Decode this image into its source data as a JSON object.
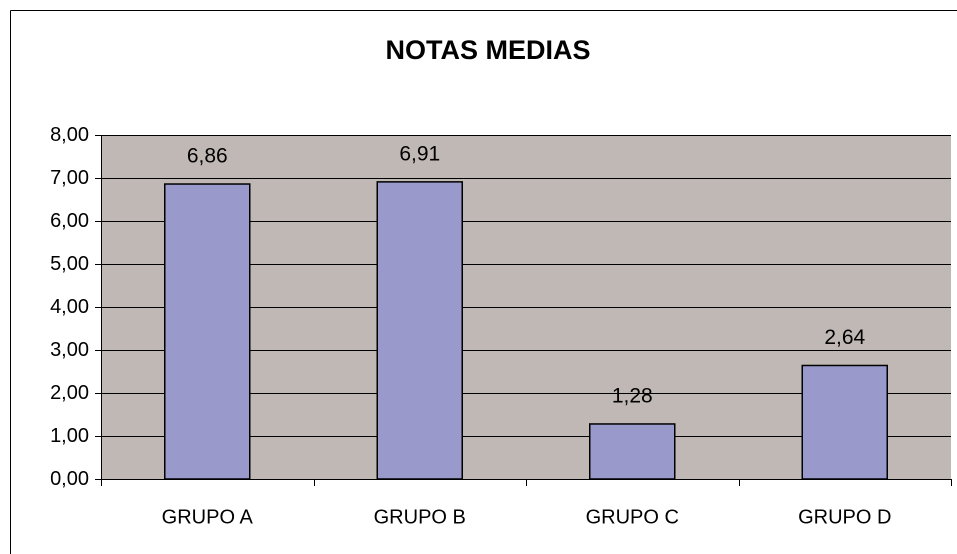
{
  "chart_data": {
    "type": "bar",
    "title": "NOTAS MEDIAS",
    "categories": [
      "GRUPO A",
      "GRUPO B",
      "GRUPO C",
      "GRUPO D"
    ],
    "values": [
      6.86,
      6.91,
      1.28,
      2.64
    ],
    "value_labels": [
      "6,86",
      "6,91",
      "1,28",
      "2,64"
    ],
    "color": "#9999cc",
    "ylim": [
      0,
      8
    ],
    "yticks": [
      {
        "value": 0,
        "label": "0,00"
      },
      {
        "value": 1,
        "label": "1,00"
      },
      {
        "value": 2,
        "label": "2,00"
      },
      {
        "value": 3,
        "label": "3,00"
      },
      {
        "value": 4,
        "label": "4,00"
      },
      {
        "value": 5,
        "label": "5,00"
      },
      {
        "value": 6,
        "label": "6,00"
      },
      {
        "value": 7,
        "label": "7,00"
      },
      {
        "value": 8,
        "label": "8,00"
      }
    ],
    "grid": true
  }
}
